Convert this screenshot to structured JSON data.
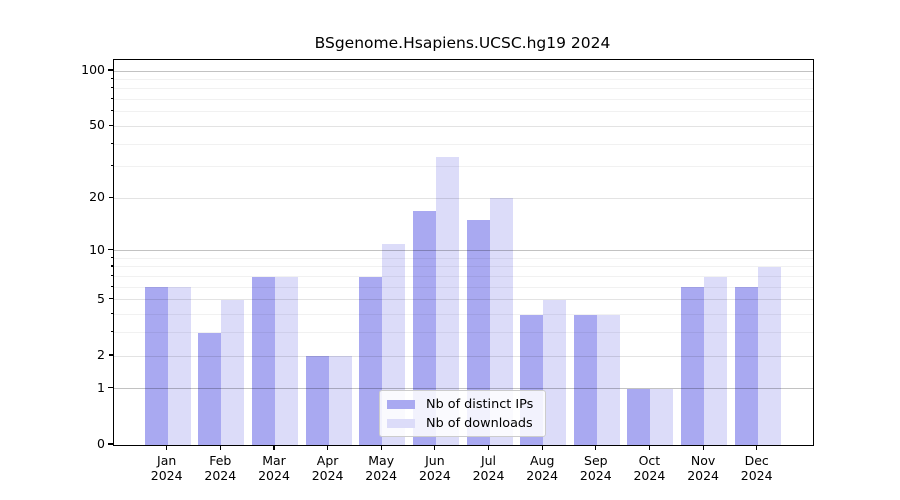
{
  "title": "BSgenome.Hsapiens.UCSC.hg19 2024",
  "chart_data": {
    "type": "bar",
    "title": "BSgenome.Hsapiens.UCSC.hg19 2024",
    "categories": [
      "Jan",
      "Feb",
      "Mar",
      "Apr",
      "May",
      "Jun",
      "Jul",
      "Aug",
      "Sep",
      "Oct",
      "Nov",
      "Dec"
    ],
    "x_year_label": "2024",
    "series": [
      {
        "name": "Nb of distinct IPs",
        "color": "#a9a9f1",
        "values": [
          6,
          3,
          7,
          2,
          7,
          17,
          15,
          4,
          4,
          1,
          6,
          6
        ]
      },
      {
        "name": "Nb of downloads",
        "color": "#dcdcf9",
        "values": [
          6,
          5,
          7,
          2,
          11,
          34,
          20,
          5,
          4,
          1,
          7,
          8
        ]
      }
    ],
    "y_scale": "log1p",
    "y_ticks": [
      0,
      1,
      2,
      5,
      10,
      20,
      50,
      100
    ],
    "y_major_decades": [
      1,
      10,
      100
    ],
    "y_mid_ticks": [
      2,
      5,
      20,
      50
    ],
    "y_minor_ticks": [
      3,
      4,
      6,
      7,
      8,
      9,
      30,
      40,
      60,
      70,
      80,
      90
    ],
    "ylim": [
      0,
      115
    ],
    "grid": true,
    "legend_position": "lower center",
    "xlabel": "",
    "ylabel": ""
  },
  "colors": {
    "bar_distinct_ips": "#a9a9f1",
    "bar_downloads": "#dcdcf9",
    "grid_major": "#c4c4c4",
    "grid_mid": "#e3e3e3",
    "grid_minor": "#efefef",
    "axis": "#000000",
    "legend_border": "#cccccc",
    "background": "#ffffff"
  }
}
